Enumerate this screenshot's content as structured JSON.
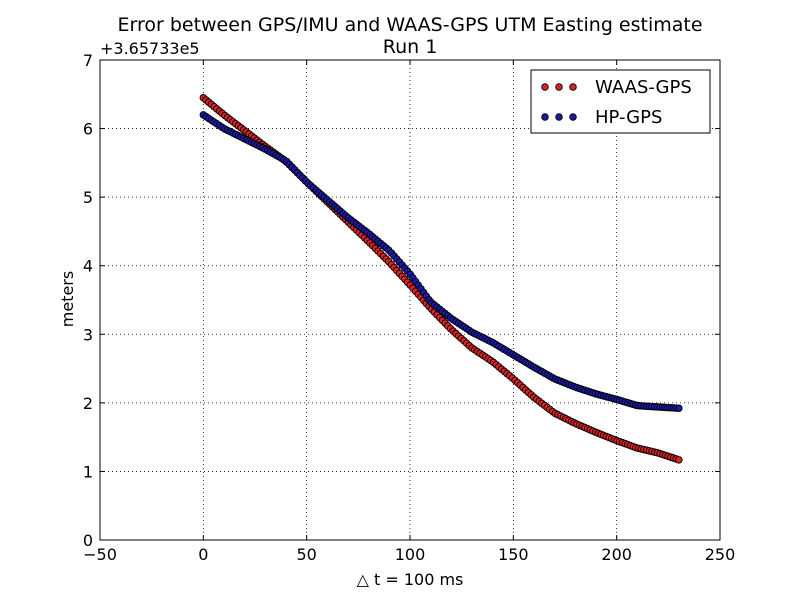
{
  "chart_data": {
    "type": "scatter",
    "title": "Error between GPS/IMU and WAAS-GPS UTM Easting estimate",
    "subtitle": "Run 1",
    "xlabel": "△ t = 100 ms",
    "ylabel": "meters",
    "offset_text": "+3.65733e5",
    "xlim": [
      -50,
      250
    ],
    "ylim": [
      0,
      7
    ],
    "xticks": [
      -50,
      0,
      50,
      100,
      150,
      200,
      250
    ],
    "yticks": [
      0,
      1,
      2,
      3,
      4,
      5,
      6,
      7
    ],
    "xtick_labels": [
      "−50",
      "0",
      "50",
      "100",
      "150",
      "200",
      "250"
    ],
    "ytick_labels": [
      "0",
      "1",
      "2",
      "3",
      "4",
      "5",
      "6",
      "7"
    ],
    "grid": true,
    "legend_position": "top-right",
    "series": [
      {
        "name": "WAAS-GPS",
        "color": "#dd2222",
        "points": [
          [
            0,
            6.45
          ],
          [
            10,
            6.2
          ],
          [
            20,
            5.97
          ],
          [
            30,
            5.74
          ],
          [
            40,
            5.52
          ],
          [
            50,
            5.22
          ],
          [
            60,
            4.93
          ],
          [
            70,
            4.64
          ],
          [
            80,
            4.35
          ],
          [
            90,
            4.05
          ],
          [
            100,
            3.72
          ],
          [
            110,
            3.38
          ],
          [
            120,
            3.07
          ],
          [
            130,
            2.8
          ],
          [
            140,
            2.6
          ],
          [
            150,
            2.35
          ],
          [
            160,
            2.08
          ],
          [
            170,
            1.85
          ],
          [
            180,
            1.7
          ],
          [
            190,
            1.57
          ],
          [
            200,
            1.45
          ],
          [
            210,
            1.34
          ],
          [
            220,
            1.27
          ],
          [
            231,
            1.16
          ]
        ]
      },
      {
        "name": "HP-GPS",
        "color": "#1a1aa6",
        "points": [
          [
            0,
            6.2
          ],
          [
            10,
            6.0
          ],
          [
            20,
            5.85
          ],
          [
            30,
            5.7
          ],
          [
            40,
            5.53
          ],
          [
            50,
            5.22
          ],
          [
            60,
            4.96
          ],
          [
            70,
            4.7
          ],
          [
            80,
            4.47
          ],
          [
            90,
            4.22
          ],
          [
            100,
            3.88
          ],
          [
            110,
            3.47
          ],
          [
            120,
            3.23
          ],
          [
            130,
            3.03
          ],
          [
            140,
            2.88
          ],
          [
            150,
            2.7
          ],
          [
            160,
            2.52
          ],
          [
            170,
            2.35
          ],
          [
            180,
            2.23
          ],
          [
            190,
            2.13
          ],
          [
            200,
            2.05
          ],
          [
            210,
            1.96
          ],
          [
            220,
            1.94
          ],
          [
            231,
            1.92
          ]
        ]
      }
    ]
  }
}
